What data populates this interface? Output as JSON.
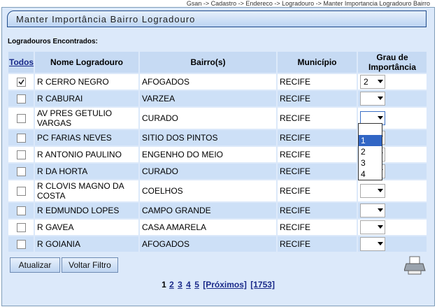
{
  "breadcrumb": "Gsan -> Cadastro -> Endereco -> Logradouro -> Manter Importancia Logradouro Bairro",
  "title": "Manter Importância Bairro Logradouro",
  "section_label": "Logradouros Encontrados:",
  "table": {
    "headers": [
      "Todos",
      "Nome Logradouro",
      "Bairro(s)",
      "Município",
      "Grau de Importância"
    ],
    "rows": [
      {
        "checked": true,
        "nome": "R CERRO NEGRO",
        "bairro": "AFOGADOS",
        "municipio": "RECIFE",
        "grau": "2"
      },
      {
        "checked": false,
        "nome": "R CABURAI",
        "bairro": "VARZEA",
        "municipio": "RECIFE",
        "grau": null
      },
      {
        "checked": false,
        "nome": "AV PRES GETULIO VARGAS",
        "bairro": "CURADO",
        "municipio": "RECIFE",
        "grau": null
      },
      {
        "checked": false,
        "nome": "PC FARIAS NEVES",
        "bairro": "SITIO DOS PINTOS",
        "municipio": "RECIFE",
        "grau": null
      },
      {
        "checked": false,
        "nome": "R ANTONIO PAULINO",
        "bairro": "ENGENHO DO MEIO",
        "municipio": "RECIFE",
        "grau": null
      },
      {
        "checked": false,
        "nome": "R DA HORTA",
        "bairro": "CURADO",
        "municipio": "RECIFE",
        "grau": null
      },
      {
        "checked": false,
        "nome": "R CLOVIS MAGNO DA COSTA",
        "bairro": "COELHOS",
        "municipio": "RECIFE",
        "grau": null
      },
      {
        "checked": false,
        "nome": "R EDMUNDO LOPES",
        "bairro": "CAMPO GRANDE",
        "municipio": "RECIFE",
        "grau": null
      },
      {
        "checked": false,
        "nome": "R GAVEA",
        "bairro": "CASA AMARELA",
        "municipio": "RECIFE",
        "grau": null
      },
      {
        "checked": false,
        "nome": "R GOIANIA",
        "bairro": "AFOGADOS",
        "municipio": "RECIFE",
        "grau": null
      }
    ]
  },
  "dropdown": {
    "options": [
      "1",
      "2",
      "3",
      "4"
    ],
    "selected": "1"
  },
  "buttons": [
    "Atualizar",
    "Voltar Filtro"
  ],
  "pagination": {
    "current": "1",
    "links": [
      "2",
      "3",
      "4",
      "5",
      "[Próximos]",
      "[1753]"
    ]
  }
}
